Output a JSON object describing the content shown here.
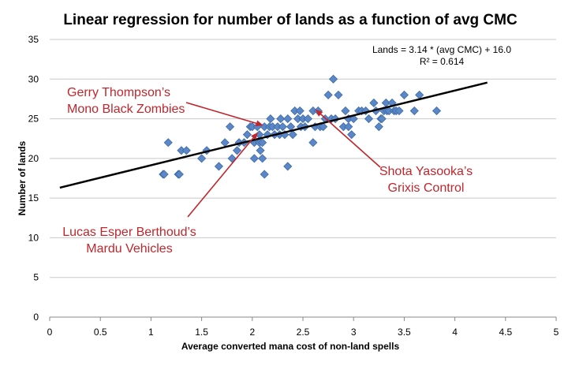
{
  "chart_data": {
    "type": "scatter",
    "title": "Linear regression for number of lands as a function of avg CMC",
    "xlabel": "Average converted mana cost of non-land spells",
    "ylabel": "Number of lands",
    "xlim": [
      0,
      5
    ],
    "ylim": [
      0,
      35
    ],
    "xticks": [
      "0",
      "0.5",
      "1",
      "1.5",
      "2",
      "2.5",
      "3",
      "3.5",
      "4",
      "4.5",
      "5"
    ],
    "yticks": [
      "0",
      "5",
      "10",
      "15",
      "20",
      "25",
      "30",
      "35"
    ],
    "grid": "horizontal",
    "marker_color": "#5b87c6",
    "trendline_color": "#000000",
    "annotation_color": "#c0262c",
    "equation": "Lands = 3.14 * (avg CMC) + 16.0",
    "r_squared": "R² = 0.614",
    "trendline": {
      "slope": 3.14,
      "intercept": 16.0,
      "x": [
        0.1,
        4.32
      ]
    },
    "points": [
      [
        1.12,
        18
      ],
      [
        1.13,
        18
      ],
      [
        1.17,
        22
      ],
      [
        1.27,
        18
      ],
      [
        1.28,
        18
      ],
      [
        1.3,
        21
      ],
      [
        1.35,
        21
      ],
      [
        1.5,
        20
      ],
      [
        1.55,
        21
      ],
      [
        1.67,
        19
      ],
      [
        1.73,
        22
      ],
      [
        1.78,
        24
      ],
      [
        1.8,
        20
      ],
      [
        1.85,
        21
      ],
      [
        1.87,
        22
      ],
      [
        1.92,
        22
      ],
      [
        1.95,
        23
      ],
      [
        1.98,
        24
      ],
      [
        2.0,
        24
      ],
      [
        2.02,
        22
      ],
      [
        2.02,
        20
      ],
      [
        2.05,
        24
      ],
      [
        2.07,
        23
      ],
      [
        2.07,
        22
      ],
      [
        2.08,
        21
      ],
      [
        2.1,
        22
      ],
      [
        2.1,
        20
      ],
      [
        2.12,
        18
      ],
      [
        2.12,
        24
      ],
      [
        2.15,
        23
      ],
      [
        2.17,
        24
      ],
      [
        2.18,
        25
      ],
      [
        2.2,
        24
      ],
      [
        2.22,
        23
      ],
      [
        2.25,
        24
      ],
      [
        2.27,
        23
      ],
      [
        2.28,
        25
      ],
      [
        2.3,
        24
      ],
      [
        2.32,
        23
      ],
      [
        2.35,
        19
      ],
      [
        2.35,
        25
      ],
      [
        2.38,
        24
      ],
      [
        2.4,
        23
      ],
      [
        2.42,
        26
      ],
      [
        2.45,
        25
      ],
      [
        2.47,
        26
      ],
      [
        2.48,
        24
      ],
      [
        2.5,
        25
      ],
      [
        2.52,
        24
      ],
      [
        2.55,
        25
      ],
      [
        2.6,
        22
      ],
      [
        2.6,
        26
      ],
      [
        2.62,
        24
      ],
      [
        2.65,
        26
      ],
      [
        2.67,
        24
      ],
      [
        2.7,
        24
      ],
      [
        2.72,
        25
      ],
      [
        2.75,
        28
      ],
      [
        2.78,
        25
      ],
      [
        2.8,
        30
      ],
      [
        2.82,
        25
      ],
      [
        2.85,
        28
      ],
      [
        2.9,
        24
      ],
      [
        2.92,
        26
      ],
      [
        2.95,
        24
      ],
      [
        2.95,
        25
      ],
      [
        2.98,
        23
      ],
      [
        3.0,
        25
      ],
      [
        3.05,
        26
      ],
      [
        3.08,
        26
      ],
      [
        3.12,
        26
      ],
      [
        3.15,
        25
      ],
      [
        3.2,
        27
      ],
      [
        3.22,
        26
      ],
      [
        3.25,
        24
      ],
      [
        3.27,
        25
      ],
      [
        3.28,
        25
      ],
      [
        3.3,
        26
      ],
      [
        3.32,
        27
      ],
      [
        3.33,
        26
      ],
      [
        3.35,
        26
      ],
      [
        3.38,
        27
      ],
      [
        3.4,
        26
      ],
      [
        3.42,
        26
      ],
      [
        3.45,
        26
      ],
      [
        3.5,
        28
      ],
      [
        3.6,
        26
      ],
      [
        3.65,
        28
      ],
      [
        3.82,
        26
      ]
    ],
    "annotations": [
      {
        "lines": [
          "Gerry Thompson’s",
          "Mono Black Zombies"
        ],
        "target": [
          2.1,
          24.2
        ]
      },
      {
        "lines": [
          "Shota Yasooka’s",
          "Grixis Control"
        ],
        "target": [
          2.63,
          26.1
        ]
      },
      {
        "lines": [
          "Lucas Esper Berthoud’s",
          "Mardu Vehicles"
        ],
        "target": [
          2.05,
          23.2
        ]
      }
    ]
  }
}
